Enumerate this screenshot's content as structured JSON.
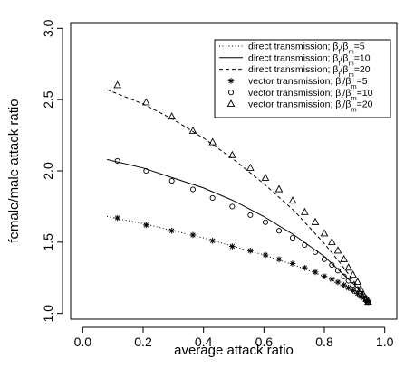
{
  "chart_data": {
    "type": "line",
    "xlabel": "average attack ratio",
    "ylabel": "female/male attack ratio",
    "xlim": [
      -0.04,
      1.04
    ],
    "ylim": [
      0.96,
      3.04
    ],
    "x_ticks": [
      "0.0",
      "0.2",
      "0.4",
      "0.6",
      "0.8",
      "1.0"
    ],
    "y_ticks": [
      "1.0",
      "1.5",
      "2.0",
      "2.5",
      "3.0"
    ],
    "legend_position": "top-right",
    "grid": false,
    "lines": [
      {
        "name": "direct transmission; βf/βm=5",
        "legend": {
          "prefix": "direct transmission; β",
          "sub1": "f",
          "mid": "/β",
          "sub2": "m",
          "suffix": "=5"
        },
        "style": "dotted",
        "x": [
          0.08,
          0.2,
          0.3,
          0.4,
          0.5,
          0.6,
          0.7,
          0.8,
          0.85,
          0.9,
          0.95
        ],
        "y": [
          1.68,
          1.63,
          1.58,
          1.53,
          1.47,
          1.41,
          1.34,
          1.26,
          1.2,
          1.14,
          1.08
        ]
      },
      {
        "name": "direct transmission; βf/βm=10",
        "legend": {
          "prefix": "direct transmission; β",
          "sub1": "f",
          "mid": "/β",
          "sub2": "m",
          "suffix": "=10"
        },
        "style": "solid",
        "x": [
          0.08,
          0.2,
          0.3,
          0.4,
          0.5,
          0.6,
          0.7,
          0.8,
          0.85,
          0.9,
          0.95
        ],
        "y": [
          2.08,
          2.02,
          1.95,
          1.88,
          1.79,
          1.68,
          1.55,
          1.4,
          1.3,
          1.2,
          1.08
        ]
      },
      {
        "name": "direct transmission; βf/βm=20",
        "legend": {
          "prefix": "direct transmission; β",
          "sub1": "f",
          "mid": "/β",
          "sub2": "m",
          "suffix": "=20"
        },
        "style": "dashed",
        "x": [
          0.08,
          0.2,
          0.3,
          0.4,
          0.5,
          0.6,
          0.7,
          0.8,
          0.85,
          0.9,
          0.95
        ],
        "y": [
          2.57,
          2.47,
          2.36,
          2.23,
          2.08,
          1.91,
          1.72,
          1.49,
          1.36,
          1.22,
          1.08
        ]
      }
    ],
    "points": [
      {
        "name": "vector transmission; βf/βm=5",
        "legend": {
          "prefix": "vector transmission; β",
          "sub1": "f",
          "mid": "/β",
          "sub2": "m",
          "suffix": "=5"
        },
        "marker": "asterisk",
        "x": [
          0.115,
          0.21,
          0.295,
          0.365,
          0.43,
          0.495,
          0.555,
          0.605,
          0.65,
          0.695,
          0.735,
          0.77,
          0.8,
          0.825,
          0.845,
          0.865,
          0.88,
          0.895,
          0.91,
          0.92,
          0.93,
          0.94,
          0.945
        ],
        "y": [
          1.67,
          1.62,
          1.58,
          1.55,
          1.51,
          1.47,
          1.44,
          1.41,
          1.38,
          1.35,
          1.32,
          1.29,
          1.26,
          1.24,
          1.22,
          1.2,
          1.18,
          1.16,
          1.14,
          1.12,
          1.11,
          1.09,
          1.08
        ]
      },
      {
        "name": "vector transmission; βf/βm=10",
        "legend": {
          "prefix": "vector transmission; β",
          "sub1": "f",
          "mid": "/β",
          "sub2": "m",
          "suffix": "=10"
        },
        "marker": "circle",
        "x": [
          0.115,
          0.21,
          0.295,
          0.365,
          0.43,
          0.495,
          0.555,
          0.605,
          0.65,
          0.695,
          0.735,
          0.77,
          0.8,
          0.825,
          0.845,
          0.865,
          0.88,
          0.895,
          0.91,
          0.92,
          0.93,
          0.94,
          0.945
        ],
        "y": [
          2.07,
          2.0,
          1.93,
          1.87,
          1.81,
          1.75,
          1.69,
          1.64,
          1.58,
          1.53,
          1.48,
          1.43,
          1.38,
          1.34,
          1.3,
          1.26,
          1.23,
          1.2,
          1.17,
          1.14,
          1.12,
          1.1,
          1.08
        ]
      },
      {
        "name": "vector transmission; βf/βm=20",
        "legend": {
          "prefix": "vector transmission; β",
          "sub1": "f",
          "mid": "/β",
          "sub2": "m",
          "suffix": "=20"
        },
        "marker": "triangle",
        "x": [
          0.115,
          0.21,
          0.295,
          0.365,
          0.43,
          0.495,
          0.555,
          0.605,
          0.65,
          0.695,
          0.735,
          0.77,
          0.8,
          0.825,
          0.845,
          0.865,
          0.88,
          0.895,
          0.91,
          0.92,
          0.93,
          0.94,
          0.945
        ],
        "y": [
          2.6,
          2.48,
          2.38,
          2.28,
          2.2,
          2.11,
          2.02,
          1.95,
          1.87,
          1.79,
          1.71,
          1.64,
          1.56,
          1.5,
          1.44,
          1.38,
          1.32,
          1.27,
          1.22,
          1.17,
          1.13,
          1.1,
          1.08
        ]
      }
    ]
  }
}
